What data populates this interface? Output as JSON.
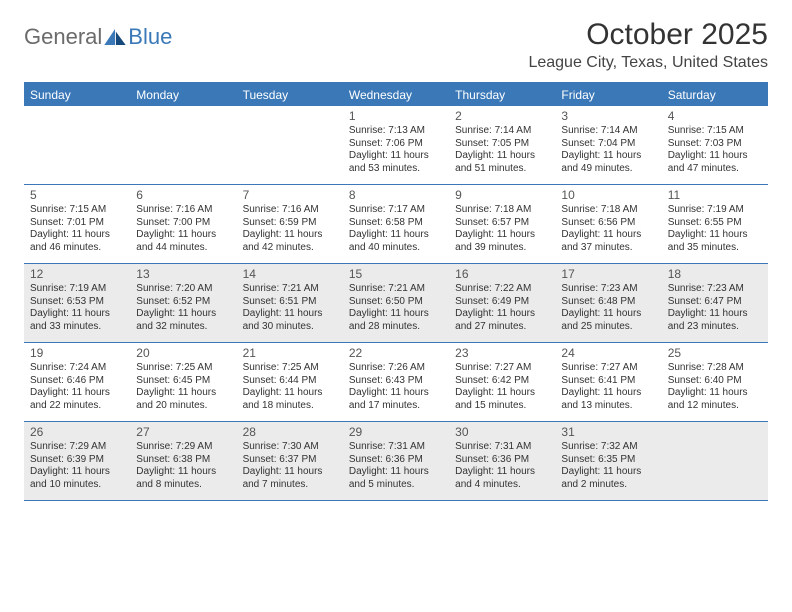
{
  "logo": {
    "text1": "General",
    "text2": "Blue"
  },
  "title": "October 2025",
  "location": "League City, Texas, United States",
  "colors": {
    "brand": "#3a78b8",
    "shaded_bg": "#ebebeb",
    "text": "#333333",
    "logo_gray": "#6b6b6b"
  },
  "daysOfWeek": [
    "Sunday",
    "Monday",
    "Tuesday",
    "Wednesday",
    "Thursday",
    "Friday",
    "Saturday"
  ],
  "shadedWeeks": [
    2,
    4
  ],
  "weeks": [
    [
      {
        "n": "",
        "sr": "",
        "ss": "",
        "dl": ""
      },
      {
        "n": "",
        "sr": "",
        "ss": "",
        "dl": ""
      },
      {
        "n": "",
        "sr": "",
        "ss": "",
        "dl": ""
      },
      {
        "n": "1",
        "sr": "7:13 AM",
        "ss": "7:06 PM",
        "dl": "11 hours and 53 minutes."
      },
      {
        "n": "2",
        "sr": "7:14 AM",
        "ss": "7:05 PM",
        "dl": "11 hours and 51 minutes."
      },
      {
        "n": "3",
        "sr": "7:14 AM",
        "ss": "7:04 PM",
        "dl": "11 hours and 49 minutes."
      },
      {
        "n": "4",
        "sr": "7:15 AM",
        "ss": "7:03 PM",
        "dl": "11 hours and 47 minutes."
      }
    ],
    [
      {
        "n": "5",
        "sr": "7:15 AM",
        "ss": "7:01 PM",
        "dl": "11 hours and 46 minutes."
      },
      {
        "n": "6",
        "sr": "7:16 AM",
        "ss": "7:00 PM",
        "dl": "11 hours and 44 minutes."
      },
      {
        "n": "7",
        "sr": "7:16 AM",
        "ss": "6:59 PM",
        "dl": "11 hours and 42 minutes."
      },
      {
        "n": "8",
        "sr": "7:17 AM",
        "ss": "6:58 PM",
        "dl": "11 hours and 40 minutes."
      },
      {
        "n": "9",
        "sr": "7:18 AM",
        "ss": "6:57 PM",
        "dl": "11 hours and 39 minutes."
      },
      {
        "n": "10",
        "sr": "7:18 AM",
        "ss": "6:56 PM",
        "dl": "11 hours and 37 minutes."
      },
      {
        "n": "11",
        "sr": "7:19 AM",
        "ss": "6:55 PM",
        "dl": "11 hours and 35 minutes."
      }
    ],
    [
      {
        "n": "12",
        "sr": "7:19 AM",
        "ss": "6:53 PM",
        "dl": "11 hours and 33 minutes."
      },
      {
        "n": "13",
        "sr": "7:20 AM",
        "ss": "6:52 PM",
        "dl": "11 hours and 32 minutes."
      },
      {
        "n": "14",
        "sr": "7:21 AM",
        "ss": "6:51 PM",
        "dl": "11 hours and 30 minutes."
      },
      {
        "n": "15",
        "sr": "7:21 AM",
        "ss": "6:50 PM",
        "dl": "11 hours and 28 minutes."
      },
      {
        "n": "16",
        "sr": "7:22 AM",
        "ss": "6:49 PM",
        "dl": "11 hours and 27 minutes."
      },
      {
        "n": "17",
        "sr": "7:23 AM",
        "ss": "6:48 PM",
        "dl": "11 hours and 25 minutes."
      },
      {
        "n": "18",
        "sr": "7:23 AM",
        "ss": "6:47 PM",
        "dl": "11 hours and 23 minutes."
      }
    ],
    [
      {
        "n": "19",
        "sr": "7:24 AM",
        "ss": "6:46 PM",
        "dl": "11 hours and 22 minutes."
      },
      {
        "n": "20",
        "sr": "7:25 AM",
        "ss": "6:45 PM",
        "dl": "11 hours and 20 minutes."
      },
      {
        "n": "21",
        "sr": "7:25 AM",
        "ss": "6:44 PM",
        "dl": "11 hours and 18 minutes."
      },
      {
        "n": "22",
        "sr": "7:26 AM",
        "ss": "6:43 PM",
        "dl": "11 hours and 17 minutes."
      },
      {
        "n": "23",
        "sr": "7:27 AM",
        "ss": "6:42 PM",
        "dl": "11 hours and 15 minutes."
      },
      {
        "n": "24",
        "sr": "7:27 AM",
        "ss": "6:41 PM",
        "dl": "11 hours and 13 minutes."
      },
      {
        "n": "25",
        "sr": "7:28 AM",
        "ss": "6:40 PM",
        "dl": "11 hours and 12 minutes."
      }
    ],
    [
      {
        "n": "26",
        "sr": "7:29 AM",
        "ss": "6:39 PM",
        "dl": "11 hours and 10 minutes."
      },
      {
        "n": "27",
        "sr": "7:29 AM",
        "ss": "6:38 PM",
        "dl": "11 hours and 8 minutes."
      },
      {
        "n": "28",
        "sr": "7:30 AM",
        "ss": "6:37 PM",
        "dl": "11 hours and 7 minutes."
      },
      {
        "n": "29",
        "sr": "7:31 AM",
        "ss": "6:36 PM",
        "dl": "11 hours and 5 minutes."
      },
      {
        "n": "30",
        "sr": "7:31 AM",
        "ss": "6:36 PM",
        "dl": "11 hours and 4 minutes."
      },
      {
        "n": "31",
        "sr": "7:32 AM",
        "ss": "6:35 PM",
        "dl": "11 hours and 2 minutes."
      },
      {
        "n": "",
        "sr": "",
        "ss": "",
        "dl": ""
      }
    ]
  ]
}
